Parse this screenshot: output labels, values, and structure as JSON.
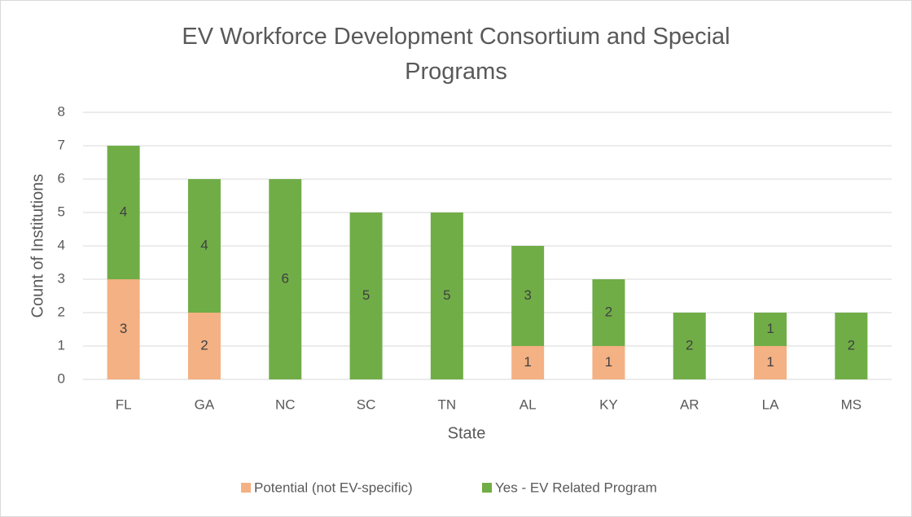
{
  "chart_data": {
    "type": "stacked_bar",
    "title": "EV Workforce Development Consortium and Special Programs",
    "xlabel": "State",
    "ylabel": "Count of Institutions",
    "categories": [
      "FL",
      "GA",
      "NC",
      "SC",
      "TN",
      "AL",
      "KY",
      "AR",
      "LA",
      "MS"
    ],
    "series": [
      {
        "name": "Potential (not EV-specific)",
        "color": "#f4b183",
        "values": [
          3,
          2,
          0,
          0,
          0,
          1,
          1,
          0,
          1,
          0
        ]
      },
      {
        "name": "Yes - EV Related Program",
        "color": "#70ad47",
        "values": [
          4,
          4,
          6,
          5,
          5,
          3,
          2,
          2,
          1,
          2
        ]
      }
    ],
    "ylim": [
      0,
      8
    ],
    "yticks": [
      0,
      1,
      2,
      3,
      4,
      5,
      6,
      7,
      8
    ],
    "grid": true,
    "legend": "bottom"
  }
}
